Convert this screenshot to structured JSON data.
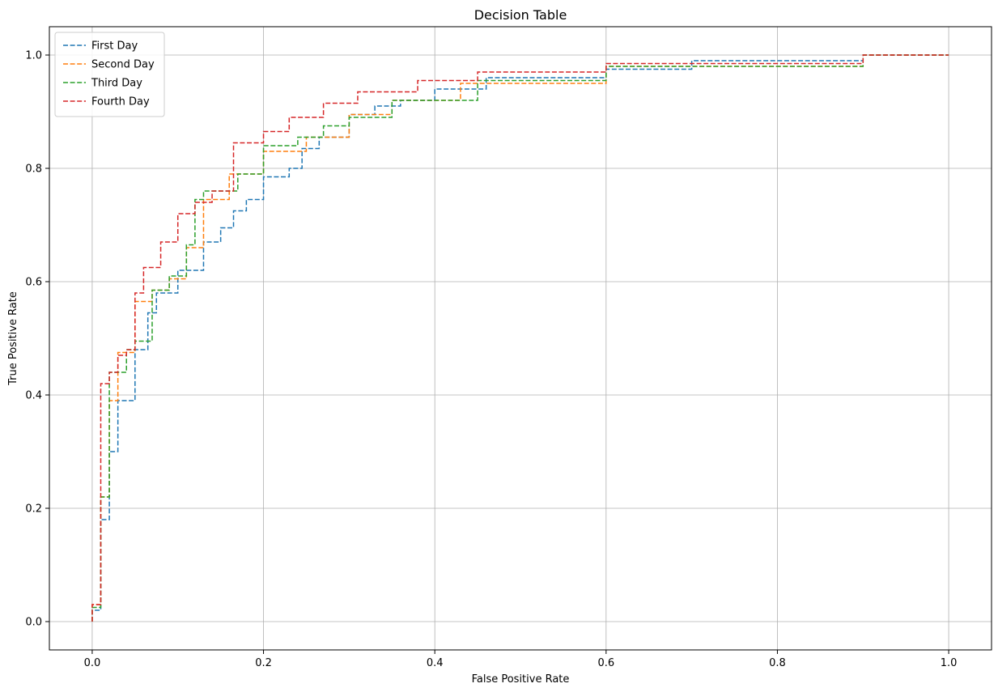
{
  "chart_data": {
    "type": "line",
    "title": "Decision Table",
    "xlabel": "False Positive Rate",
    "ylabel": "True Positive Rate",
    "xlim": [
      -0.05,
      1.05
    ],
    "ylim": [
      -0.05,
      1.05
    ],
    "xticks": [
      0.0,
      0.2,
      0.4,
      0.6,
      0.8,
      1.0
    ],
    "yticks": [
      0.0,
      0.2,
      0.4,
      0.6,
      0.8,
      1.0
    ],
    "xtick_labels": [
      "0.0",
      "0.2",
      "0.4",
      "0.6",
      "0.8",
      "1.0"
    ],
    "ytick_labels": [
      "0.0",
      "0.2",
      "0.4",
      "0.6",
      "0.8",
      "1.0"
    ],
    "grid": true,
    "legend_position": "top-left",
    "line_style": "dashed-step",
    "series": [
      {
        "name": "First Day",
        "color": "#1f77b4",
        "x": [
          0.0,
          0.0,
          0.01,
          0.01,
          0.02,
          0.02,
          0.03,
          0.03,
          0.05,
          0.05,
          0.065,
          0.065,
          0.075,
          0.075,
          0.1,
          0.1,
          0.13,
          0.13,
          0.15,
          0.15,
          0.165,
          0.165,
          0.18,
          0.18,
          0.2,
          0.2,
          0.23,
          0.23,
          0.245,
          0.245,
          0.265,
          0.265,
          0.3,
          0.3,
          0.33,
          0.33,
          0.36,
          0.36,
          0.4,
          0.4,
          0.46,
          0.46,
          0.6,
          0.6,
          0.7,
          0.7,
          0.9,
          0.9,
          1.0
        ],
        "y": [
          0.0,
          0.02,
          0.02,
          0.18,
          0.18,
          0.3,
          0.3,
          0.39,
          0.39,
          0.48,
          0.48,
          0.545,
          0.545,
          0.58,
          0.58,
          0.62,
          0.62,
          0.67,
          0.67,
          0.695,
          0.695,
          0.725,
          0.725,
          0.745,
          0.745,
          0.785,
          0.785,
          0.8,
          0.8,
          0.835,
          0.835,
          0.855,
          0.855,
          0.895,
          0.895,
          0.91,
          0.91,
          0.92,
          0.92,
          0.94,
          0.94,
          0.96,
          0.96,
          0.975,
          0.975,
          0.99,
          0.99,
          1.0,
          1.0
        ]
      },
      {
        "name": "Second Day",
        "color": "#ff7f0e",
        "x": [
          0.0,
          0.0,
          0.01,
          0.01,
          0.02,
          0.02,
          0.03,
          0.03,
          0.05,
          0.05,
          0.07,
          0.07,
          0.09,
          0.09,
          0.11,
          0.11,
          0.13,
          0.13,
          0.16,
          0.16,
          0.2,
          0.2,
          0.25,
          0.25,
          0.3,
          0.3,
          0.35,
          0.35,
          0.43,
          0.43,
          0.6,
          0.6,
          0.9,
          0.9,
          1.0
        ],
        "y": [
          0.0,
          0.03,
          0.03,
          0.22,
          0.22,
          0.39,
          0.39,
          0.475,
          0.475,
          0.565,
          0.565,
          0.585,
          0.585,
          0.605,
          0.605,
          0.66,
          0.66,
          0.745,
          0.745,
          0.79,
          0.79,
          0.83,
          0.83,
          0.855,
          0.855,
          0.895,
          0.895,
          0.92,
          0.92,
          0.95,
          0.95,
          0.98,
          0.98,
          1.0,
          1.0
        ]
      },
      {
        "name": "Third Day",
        "color": "#2ca02c",
        "x": [
          0.0,
          0.0,
          0.01,
          0.01,
          0.02,
          0.02,
          0.04,
          0.04,
          0.05,
          0.05,
          0.07,
          0.07,
          0.09,
          0.09,
          0.11,
          0.11,
          0.12,
          0.12,
          0.13,
          0.13,
          0.17,
          0.17,
          0.2,
          0.2,
          0.24,
          0.24,
          0.27,
          0.27,
          0.3,
          0.3,
          0.35,
          0.35,
          0.45,
          0.45,
          0.6,
          0.6,
          0.9,
          0.9,
          1.0
        ],
        "y": [
          0.0,
          0.025,
          0.025,
          0.22,
          0.22,
          0.44,
          0.44,
          0.48,
          0.48,
          0.495,
          0.495,
          0.585,
          0.585,
          0.61,
          0.61,
          0.665,
          0.665,
          0.745,
          0.745,
          0.76,
          0.76,
          0.79,
          0.79,
          0.84,
          0.84,
          0.855,
          0.855,
          0.875,
          0.875,
          0.89,
          0.89,
          0.92,
          0.92,
          0.955,
          0.955,
          0.98,
          0.98,
          1.0,
          1.0
        ]
      },
      {
        "name": "Fourth Day",
        "color": "#d62728",
        "x": [
          0.0,
          0.0,
          0.01,
          0.01,
          0.02,
          0.02,
          0.03,
          0.03,
          0.04,
          0.04,
          0.05,
          0.05,
          0.06,
          0.06,
          0.08,
          0.08,
          0.1,
          0.1,
          0.12,
          0.12,
          0.14,
          0.14,
          0.165,
          0.165,
          0.2,
          0.2,
          0.23,
          0.23,
          0.27,
          0.27,
          0.31,
          0.31,
          0.38,
          0.38,
          0.45,
          0.45,
          0.6,
          0.6,
          0.9,
          0.9,
          1.0
        ],
        "y": [
          0.0,
          0.03,
          0.03,
          0.42,
          0.42,
          0.44,
          0.44,
          0.47,
          0.47,
          0.48,
          0.48,
          0.58,
          0.58,
          0.625,
          0.625,
          0.67,
          0.67,
          0.72,
          0.72,
          0.74,
          0.74,
          0.76,
          0.76,
          0.845,
          0.845,
          0.865,
          0.865,
          0.89,
          0.89,
          0.915,
          0.915,
          0.935,
          0.935,
          0.955,
          0.955,
          0.97,
          0.97,
          0.985,
          0.985,
          1.0,
          1.0
        ]
      }
    ]
  }
}
